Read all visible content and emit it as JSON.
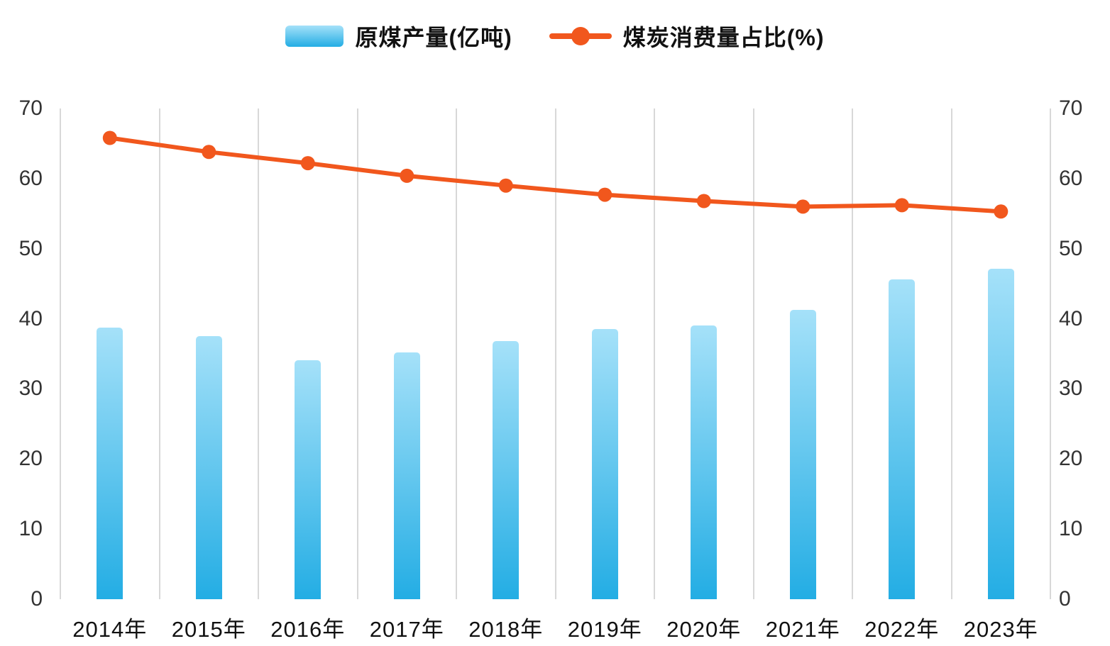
{
  "legend": {
    "bar_label": "原煤产量(亿吨)",
    "line_label": "煤炭消费量占比(%)"
  },
  "colors": {
    "bar_gradient_top": "#a5e1f9",
    "bar_gradient_bottom": "#23ade4",
    "line": "#f1571d",
    "gridline": "#d8d8d8",
    "axis_text": "#333333",
    "x_label_text": "#111111"
  },
  "chart_data": {
    "type": "bar",
    "title": "",
    "xlabel": "",
    "ylabel": "",
    "categories": [
      "2014年",
      "2015年",
      "2016年",
      "2017年",
      "2018年",
      "2019年",
      "2020年",
      "2021年",
      "2022年",
      "2023年"
    ],
    "series": [
      {
        "name": "原煤产量(亿吨)",
        "type": "bar",
        "values": [
          38.7,
          37.5,
          34.1,
          35.2,
          36.8,
          38.5,
          39.0,
          41.3,
          45.6,
          47.1
        ]
      },
      {
        "name": "煤炭消费量占比(%)",
        "type": "line",
        "values": [
          65.8,
          63.8,
          62.2,
          60.4,
          59.0,
          57.7,
          56.8,
          56.0,
          56.2,
          55.3
        ]
      }
    ],
    "y_axis_left": {
      "min": 0,
      "max": 70,
      "ticks": [
        0,
        10,
        20,
        30,
        40,
        50,
        60,
        70
      ]
    },
    "y_axis_right": {
      "min": 0,
      "max": 70,
      "ticks": [
        0,
        10,
        20,
        30,
        40,
        50,
        60,
        70
      ]
    },
    "grid": "vertical-boundary-lines",
    "legend_position": "top-center"
  }
}
